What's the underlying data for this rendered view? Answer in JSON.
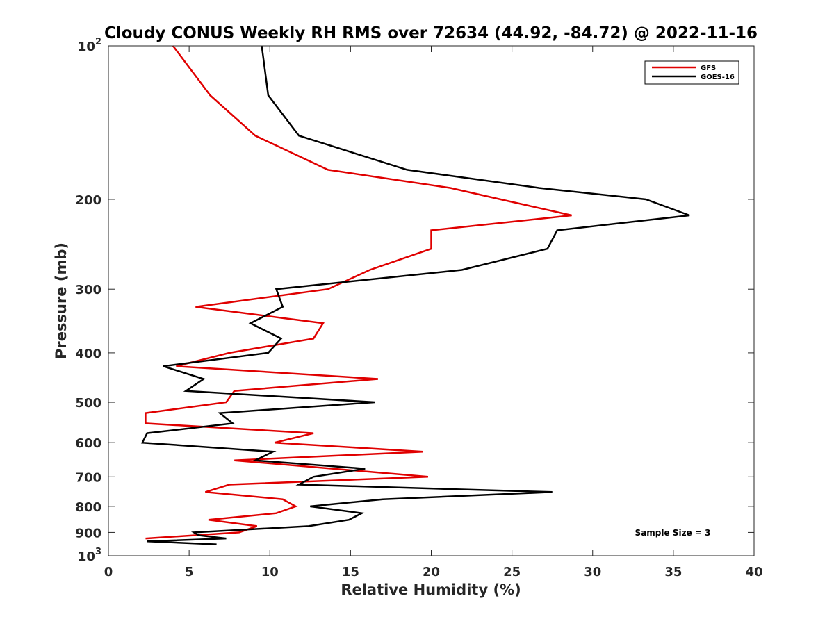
{
  "chart_data": {
    "type": "line",
    "title": "Cloudy CONUS Weekly RH RMS over 72634 (44.92, -84.72) @ 2022-11-16",
    "xlabel": "Relative Humidity (%)",
    "ylabel": "Pressure (mb)",
    "xlim": [
      0,
      40
    ],
    "ylim": [
      100,
      1000
    ],
    "y_scale": "log",
    "y_reversed": true,
    "grid": false,
    "legend_position": "top-right",
    "x_ticks": [
      0,
      5,
      10,
      15,
      20,
      25,
      30,
      35,
      40
    ],
    "x_tick_labels": [
      "0",
      "5",
      "10",
      "15",
      "20",
      "25",
      "30",
      "35",
      "40"
    ],
    "y_ticks": [
      100,
      200,
      300,
      400,
      500,
      600,
      700,
      800,
      900,
      1000
    ],
    "y_tick_labels": [
      {
        "base": "10",
        "exp": "2"
      },
      {
        "base": "200",
        "exp": ""
      },
      {
        "base": "300",
        "exp": ""
      },
      {
        "base": "400",
        "exp": ""
      },
      {
        "base": "500",
        "exp": ""
      },
      {
        "base": "600",
        "exp": ""
      },
      {
        "base": "700",
        "exp": ""
      },
      {
        "base": "800",
        "exp": ""
      },
      {
        "base": "900",
        "exp": ""
      },
      {
        "base": "10",
        "exp": "3"
      }
    ],
    "series": [
      {
        "name": "GFS",
        "color": "#e00000",
        "points": [
          [
            4.0,
            100
          ],
          [
            6.3,
            125
          ],
          [
            9.1,
            150
          ],
          [
            13.6,
            175
          ],
          [
            21.2,
            190
          ],
          [
            24.3,
            200
          ],
          [
            28.7,
            215
          ],
          [
            20.0,
            230
          ],
          [
            20.0,
            250
          ],
          [
            16.2,
            275
          ],
          [
            13.6,
            300
          ],
          [
            5.4,
            325
          ],
          [
            13.3,
            350
          ],
          [
            12.7,
            375
          ],
          [
            7.5,
            400
          ],
          [
            4.2,
            425
          ],
          [
            16.7,
            450
          ],
          [
            7.8,
            475
          ],
          [
            7.3,
            500
          ],
          [
            2.3,
            525
          ],
          [
            2.3,
            550
          ],
          [
            12.7,
            575
          ],
          [
            10.3,
            600
          ],
          [
            19.5,
            625
          ],
          [
            7.8,
            650
          ],
          [
            19.8,
            700
          ],
          [
            7.5,
            725
          ],
          [
            6.0,
            750
          ],
          [
            10.8,
            775
          ],
          [
            11.6,
            800
          ],
          [
            10.4,
            825
          ],
          [
            6.2,
            850
          ],
          [
            9.2,
            875
          ],
          [
            8.1,
            900
          ],
          [
            2.3,
            925
          ]
        ]
      },
      {
        "name": "GOES-16",
        "color": "#000000",
        "points": [
          [
            9.5,
            100
          ],
          [
            9.9,
            125
          ],
          [
            11.8,
            150
          ],
          [
            18.5,
            175
          ],
          [
            26.7,
            190
          ],
          [
            33.3,
            200
          ],
          [
            36.0,
            215
          ],
          [
            27.8,
            230
          ],
          [
            27.2,
            250
          ],
          [
            21.9,
            275
          ],
          [
            10.4,
            300
          ],
          [
            10.8,
            325
          ],
          [
            8.8,
            350
          ],
          [
            10.7,
            375
          ],
          [
            9.9,
            400
          ],
          [
            3.4,
            425
          ],
          [
            5.9,
            450
          ],
          [
            4.8,
            475
          ],
          [
            16.5,
            500
          ],
          [
            6.9,
            525
          ],
          [
            7.7,
            550
          ],
          [
            2.4,
            575
          ],
          [
            2.1,
            600
          ],
          [
            10.2,
            625
          ],
          [
            9.1,
            650
          ],
          [
            15.9,
            675
          ],
          [
            12.7,
            700
          ],
          [
            11.8,
            725
          ],
          [
            27.5,
            750
          ],
          [
            17.0,
            775
          ],
          [
            12.5,
            800
          ],
          [
            15.7,
            825
          ],
          [
            14.9,
            850
          ],
          [
            12.4,
            875
          ],
          [
            5.3,
            900
          ],
          [
            5.6,
            912
          ],
          [
            7.3,
            925
          ],
          [
            2.4,
            937
          ],
          [
            6.7,
            950
          ]
        ]
      }
    ],
    "annotation": "Sample Size = 3"
  }
}
